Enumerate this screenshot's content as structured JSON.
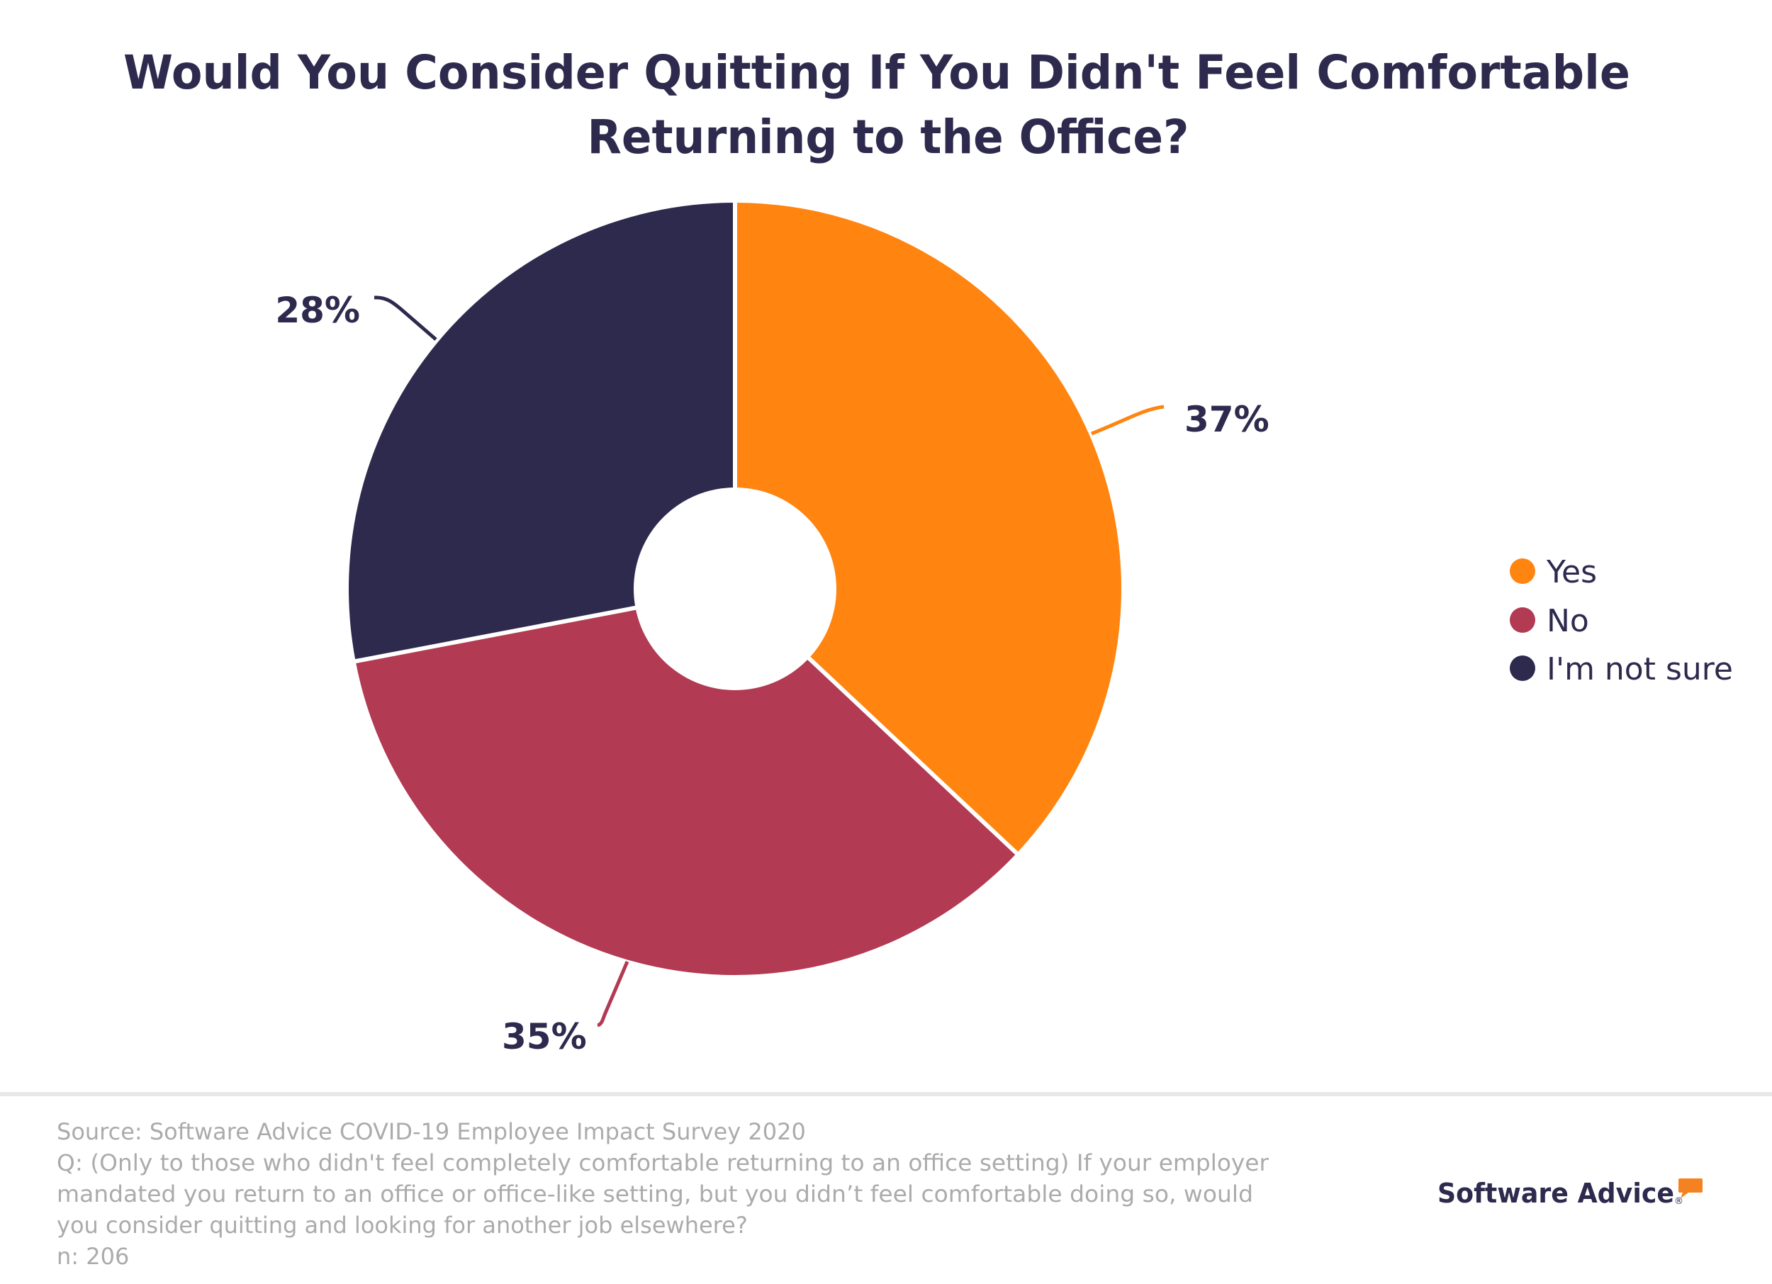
{
  "chart_data": {
    "type": "pie",
    "variant": "donut",
    "title": "Would You Consider Quitting If You Didn't Feel Comfortable Returning to the Office?",
    "title_lines": [
      "Would You Consider Quitting If You Didn't Feel Comfortable",
      "Returning to the Office?"
    ],
    "start_angle": "12 o'clock",
    "direction": "clockwise",
    "slices": [
      {
        "label": "Yes",
        "value": 37,
        "display": "37%",
        "color": "#FF8410"
      },
      {
        "label": "No",
        "value": 35,
        "display": "35%",
        "color": "#B23A52"
      },
      {
        "label": "I'm not sure",
        "value": 28,
        "display": "28%",
        "color": "#2E2A4D"
      }
    ],
    "unit": "%",
    "legend": {
      "placement": "right",
      "entries": [
        "Yes",
        "No",
        "I'm not sure"
      ]
    }
  },
  "footer": {
    "lines": [
      "Source: Software Advice COVID-19 Employee Impact Survey 2020",
      "Q: (Only to those who didn't feel completely comfortable returning to an office setting) If your employer",
      "mandated you return to an office or office-like setting, but you didn’t feel comfortable doing so, would",
      "you consider quitting and looking for another job elsewhere?",
      "n: 206"
    ]
  },
  "logo": {
    "text": "Software Advice",
    "registered": "®",
    "accent_color": "#F58220",
    "icon": "speech-bubble-icon"
  },
  "colors": {
    "text": "#2D2A4D",
    "footer_text": "#ABABAB",
    "divider": "#E8E8E8"
  }
}
